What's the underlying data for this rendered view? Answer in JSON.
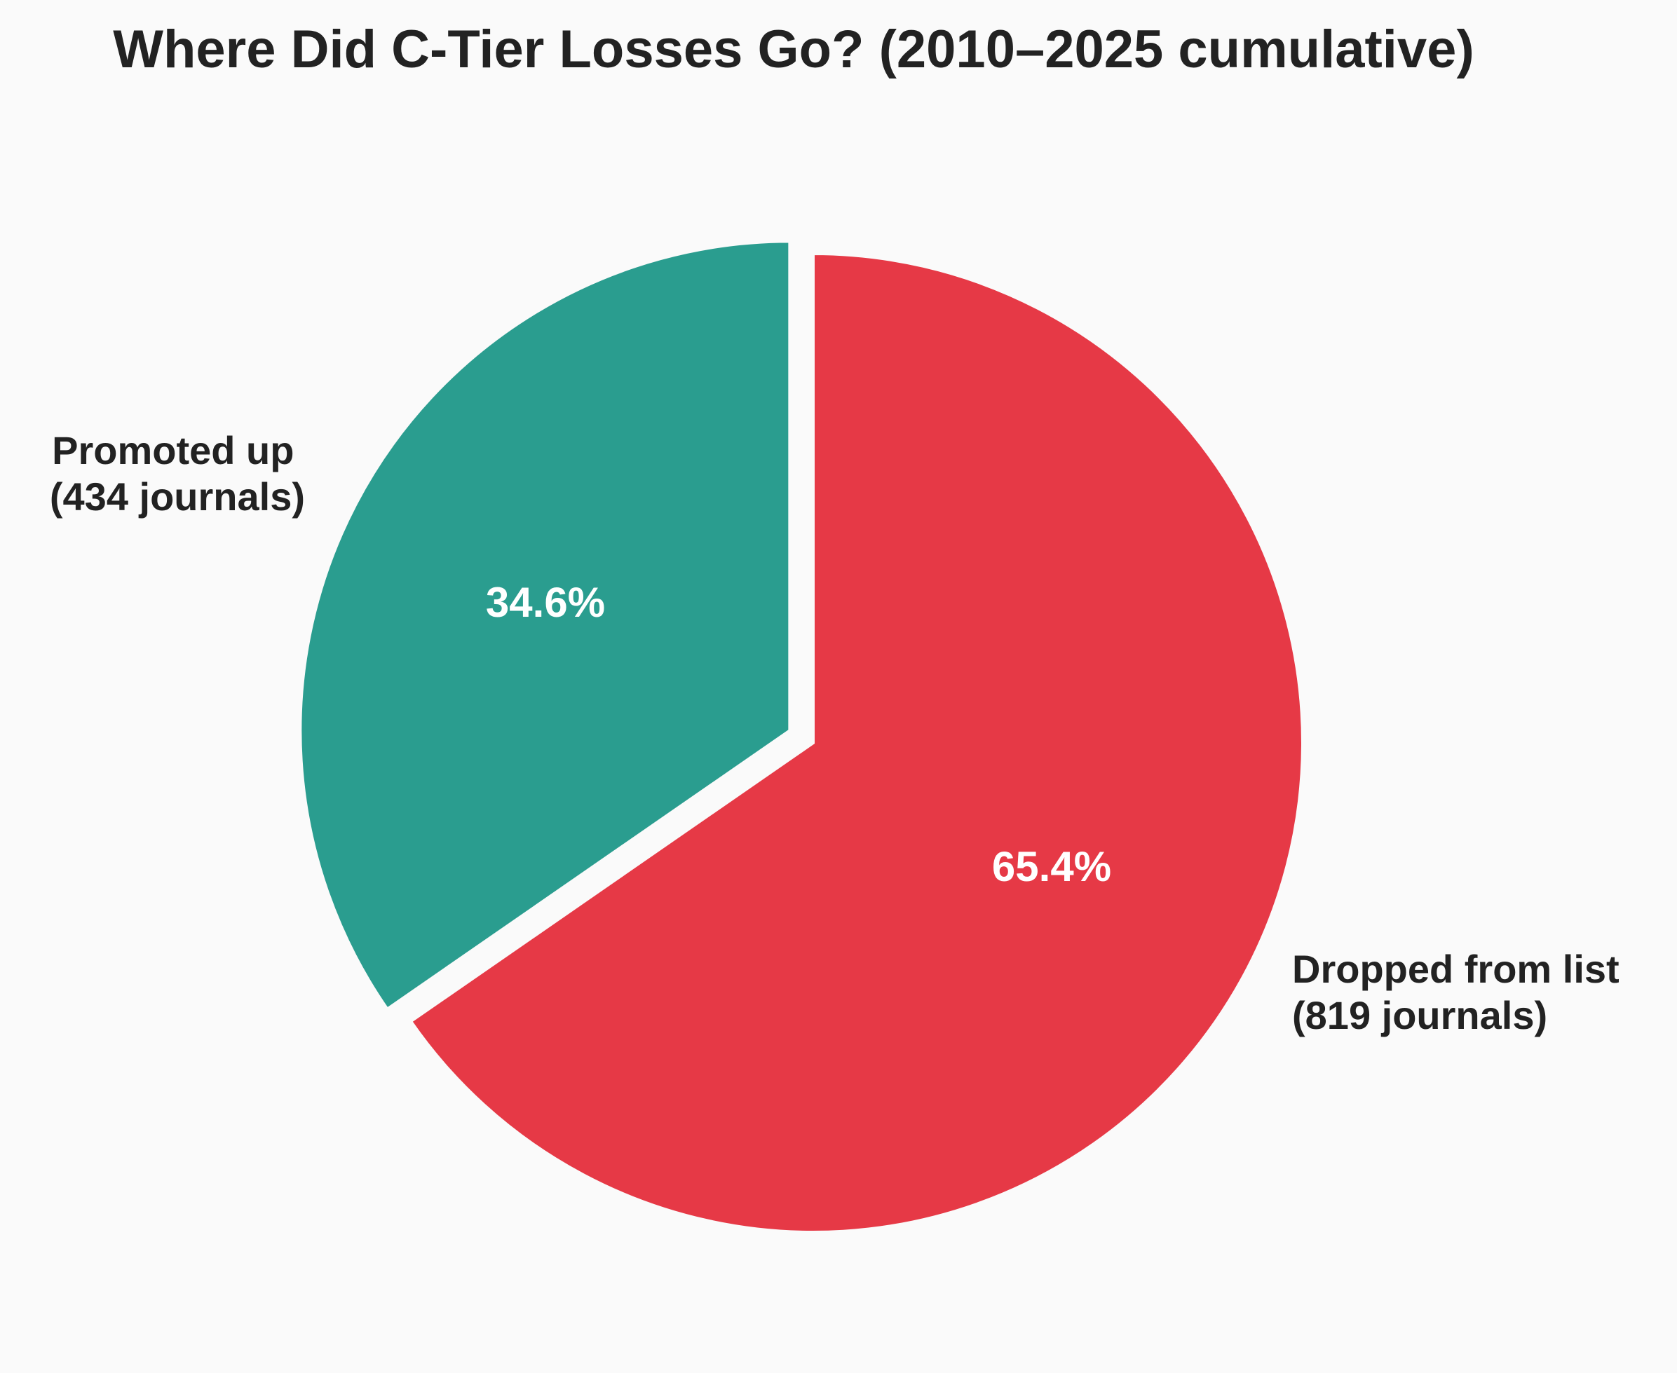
{
  "chart_data": {
    "type": "pie",
    "title": "Where Did C-Tier Losses Go? (2010–2025 cumulative)",
    "slices": [
      {
        "label_line1": "Promoted up",
        "label_line2": "(434 journals)",
        "value": 434,
        "percent_label": "34.6%",
        "color": "#2a9d8f",
        "exploded": true
      },
      {
        "label_line1": "Dropped from list",
        "label_line2": "(819 journals)",
        "value": 819,
        "percent_label": "65.4%",
        "color": "#e63946",
        "exploded": false
      }
    ],
    "start_angle_deg": 90,
    "direction": "counterclockwise",
    "legend": "none"
  }
}
